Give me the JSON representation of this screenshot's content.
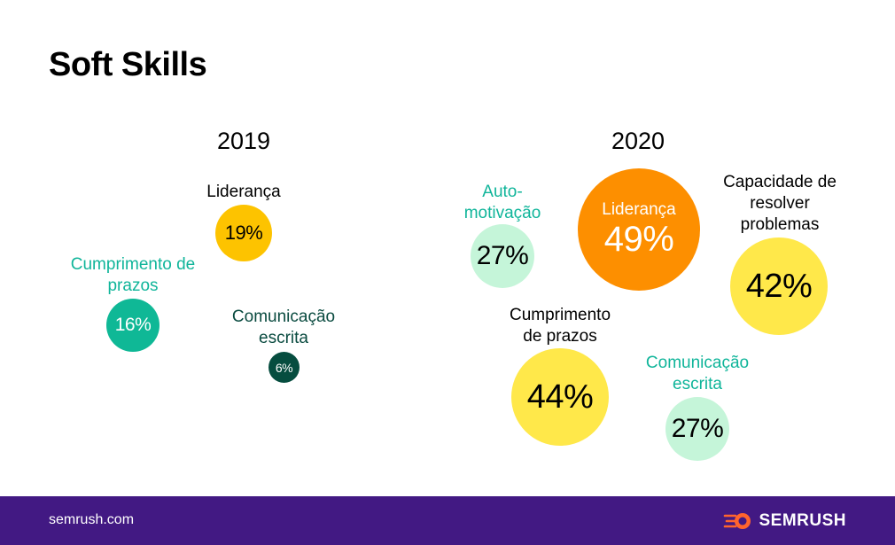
{
  "title": "Soft Skills",
  "footer": {
    "site": "semrush.com",
    "brand": "SEMRUSH"
  },
  "colors": {
    "teal": "#0fb896",
    "teal_text": "#10b59a",
    "dark_green": "#064d3f",
    "dark_green_text": "#0a4b40",
    "light_green": "#c5f5d9",
    "yellow_2019": "#fdc300",
    "orange": "#fd8f00",
    "yellow_2020": "#ffe84a",
    "footer_bg": "#421983",
    "brand_orange": "#ff642d"
  },
  "chart_data": [
    {
      "type": "bubble",
      "title": "2019",
      "unit": "%",
      "items": [
        {
          "label": "Liderança",
          "value": 19,
          "display": "19%"
        },
        {
          "label": "Cumprimento de prazos",
          "value": 16,
          "display": "16%"
        },
        {
          "label": "Comunicação escrita",
          "value": 6,
          "display": "6%"
        }
      ]
    },
    {
      "type": "bubble",
      "title": "2020",
      "unit": "%",
      "items": [
        {
          "label": "Auto-motivação",
          "value": 27,
          "display": "27%"
        },
        {
          "label": "Liderança",
          "value": 49,
          "display": "49%"
        },
        {
          "label": "Capacidade de resolver problemas",
          "value": 42,
          "display": "42%"
        },
        {
          "label": "Cumprimento de prazos",
          "value": 44,
          "display": "44%"
        },
        {
          "label": "Comunicação escrita",
          "value": 27,
          "display": "27%"
        }
      ]
    }
  ]
}
